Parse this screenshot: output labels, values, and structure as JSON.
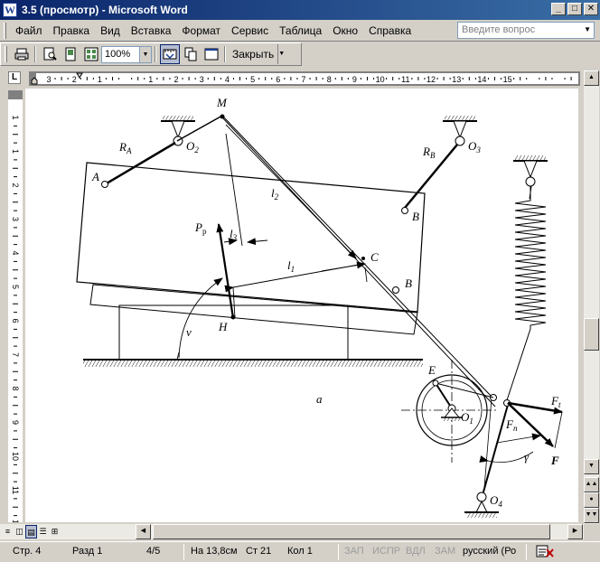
{
  "window": {
    "title": "3.5 (просмотр) - Microsoft Word",
    "app_icon": "W"
  },
  "menu": {
    "items": [
      "Файл",
      "Правка",
      "Вид",
      "Вставка",
      "Формат",
      "Сервис",
      "Таблица",
      "Окно",
      "Справка"
    ],
    "help_placeholder": "Введите вопрос"
  },
  "toolbar": {
    "zoom": "100%",
    "close_label": "Закрыть"
  },
  "ruler": {
    "h_labels": [
      "3",
      "2",
      "1",
      "1",
      "2",
      "3",
      "4",
      "5",
      "6",
      "7",
      "8",
      "9",
      "10",
      "11",
      "12",
      "13",
      "14",
      "15"
    ],
    "v_labels": [
      "1",
      "1",
      "2",
      "3",
      "4",
      "5",
      "6",
      "7",
      "8",
      "9",
      "10",
      "11",
      "12"
    ]
  },
  "figure": {
    "labels": {
      "M": "M",
      "RA": "R",
      "RA_sub": "A",
      "O2": "O",
      "O2_sub": "2",
      "A": "A",
      "RB": "R",
      "RB_sub": "B",
      "O3": "O",
      "O3_sub": "3",
      "l2": "l",
      "l2_sub": "2",
      "B1": "B",
      "Pp": "P",
      "Pp_sub": "р",
      "l3": "l",
      "l3_sub": "3",
      "C": "C",
      "l1": "l",
      "l1_sub": "1",
      "B2": "B",
      "H": "H",
      "nu": "ν",
      "a": "a",
      "E": "E",
      "O1": "O",
      "O1_sub": "1",
      "Ft": "F",
      "Ft_sub": "t",
      "Fn": "F",
      "Fn_sub": "n",
      "F": "F",
      "gamma": "γ",
      "O4": "O",
      "O4_sub": "4"
    }
  },
  "status": {
    "page": "Стр. 4",
    "section": "Разд 1",
    "pages": "4/5",
    "position": "На 13,8см",
    "line": "Ст 21",
    "column": "Кол 1",
    "rec": "ЗАП",
    "trk": "ИСПР",
    "ext": "ВДЛ",
    "ovr": "ЗАМ",
    "language": "русский (Ро"
  },
  "colors": {
    "titlebar_start": "#0a246a",
    "titlebar_end": "#3a6ea5",
    "face": "#d4d0c8"
  }
}
